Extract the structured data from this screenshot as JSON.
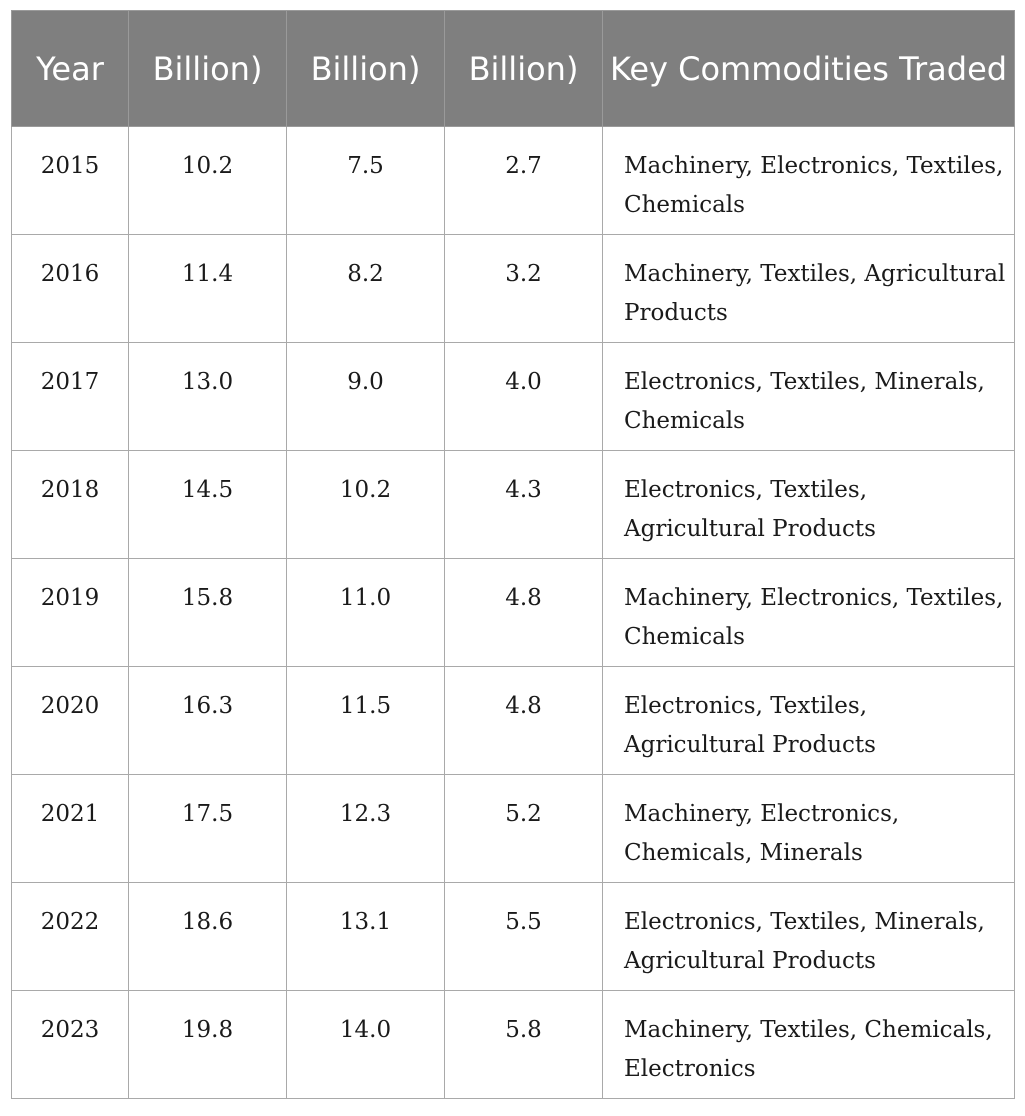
{
  "table": {
    "headers": [
      "Year",
      "Billion)",
      "Billion)",
      "Billion)",
      "Key Commodities Traded"
    ],
    "rows": [
      {
        "year": "2015",
        "b1": "10.2",
        "b2": "7.5",
        "b3": "2.7",
        "commodities": "Machinery, Electronics, Textiles, Chemicals"
      },
      {
        "year": "2016",
        "b1": "11.4",
        "b2": "8.2",
        "b3": "3.2",
        "commodities": "Machinery, Textiles, Agricultural Products"
      },
      {
        "year": "2017",
        "b1": "13.0",
        "b2": "9.0",
        "b3": "4.0",
        "commodities": "Electronics, Textiles, Minerals, Chemicals"
      },
      {
        "year": "2018",
        "b1": "14.5",
        "b2": "10.2",
        "b3": "4.3",
        "commodities": "Electronics, Textiles, Agricultural Products"
      },
      {
        "year": "2019",
        "b1": "15.8",
        "b2": "11.0",
        "b3": "4.8",
        "commodities": "Machinery, Electronics, Textiles, Chemicals"
      },
      {
        "year": "2020",
        "b1": "16.3",
        "b2": "11.5",
        "b3": "4.8",
        "commodities": "Electronics, Textiles, Agricultural Products"
      },
      {
        "year": "2021",
        "b1": "17.5",
        "b2": "12.3",
        "b3": "5.2",
        "commodities": "Machinery, Electronics, Chemicals, Minerals"
      },
      {
        "year": "2022",
        "b1": "18.6",
        "b2": "13.1",
        "b3": "5.5",
        "commodities": "Electronics, Textiles, Minerals, Agricultural Products"
      },
      {
        "year": "2023",
        "b1": "19.8",
        "b2": "14.0",
        "b3": "5.8",
        "commodities": "Machinery, Textiles, Chemicals, Electronics"
      }
    ]
  }
}
